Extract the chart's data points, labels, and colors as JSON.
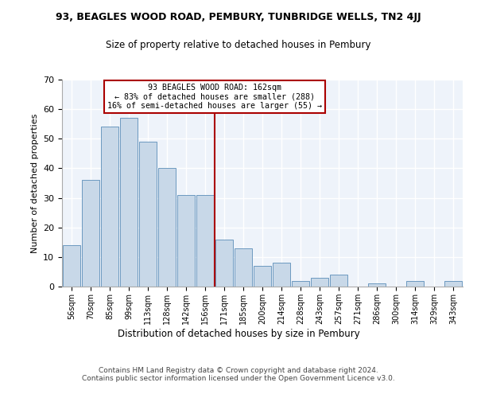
{
  "title": "93, BEAGLES WOOD ROAD, PEMBURY, TUNBRIDGE WELLS, TN2 4JJ",
  "subtitle": "Size of property relative to detached houses in Pembury",
  "xlabel": "Distribution of detached houses by size in Pembury",
  "ylabel": "Number of detached properties",
  "bar_color": "#c8d8e8",
  "bar_edge_color": "#5b8db8",
  "bg_color": "#eef3fa",
  "grid_color": "#ffffff",
  "categories": [
    "56sqm",
    "70sqm",
    "85sqm",
    "99sqm",
    "113sqm",
    "128sqm",
    "142sqm",
    "156sqm",
    "171sqm",
    "185sqm",
    "200sqm",
    "214sqm",
    "228sqm",
    "243sqm",
    "257sqm",
    "271sqm",
    "286sqm",
    "300sqm",
    "314sqm",
    "329sqm",
    "343sqm"
  ],
  "values": [
    14,
    36,
    54,
    57,
    49,
    40,
    31,
    31,
    16,
    13,
    7,
    8,
    2,
    3,
    4,
    0,
    1,
    0,
    2,
    0,
    2
  ],
  "vline_pos": 7.5,
  "vline_color": "#aa0000",
  "annotation_title": "93 BEAGLES WOOD ROAD: 162sqm",
  "annotation_line1": "← 83% of detached houses are smaller (288)",
  "annotation_line2": "16% of semi-detached houses are larger (55) →",
  "annotation_box_color": "#aa0000",
  "ylim": [
    0,
    70
  ],
  "yticks": [
    0,
    10,
    20,
    30,
    40,
    50,
    60,
    70
  ],
  "footer1": "Contains HM Land Registry data © Crown copyright and database right 2024.",
  "footer2": "Contains public sector information licensed under the Open Government Licence v3.0."
}
